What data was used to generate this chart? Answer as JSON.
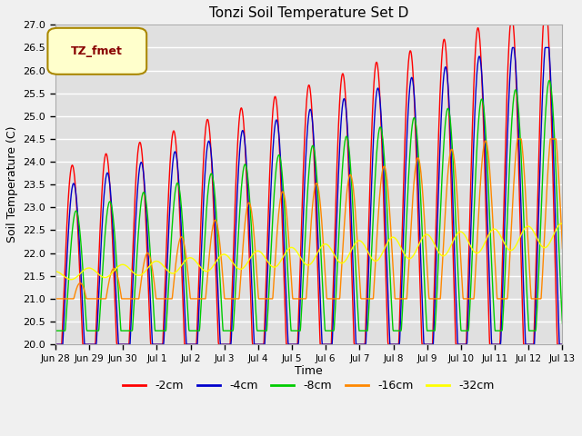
{
  "title": "Tonzi Soil Temperature Set D",
  "xlabel": "Time",
  "ylabel": "Soil Temperature (C)",
  "ylim": [
    20.0,
    27.0
  ],
  "yticks": [
    20.0,
    20.5,
    21.0,
    21.5,
    22.0,
    22.5,
    23.0,
    23.5,
    24.0,
    24.5,
    25.0,
    25.5,
    26.0,
    26.5,
    27.0
  ],
  "xtick_labels": [
    "Jun 28",
    "Jun 29",
    "Jun 30",
    "Jul 1",
    "Jul 2",
    "Jul 3",
    "Jul 4",
    "Jul 5",
    "Jul 6",
    "Jul 7",
    "Jul 8",
    "Jul 9",
    "Jul 10",
    "Jul 11",
    "Jul 12",
    "Jul 13"
  ],
  "legend_label": "TZ_fmet",
  "legend_border_color": "#aa8800",
  "legend_bg_color": "#ffffcc",
  "legend_text_color": "#880000",
  "series_labels": [
    "-2cm",
    "-4cm",
    "-8cm",
    "-16cm",
    "-32cm"
  ],
  "series_colors": [
    "#ff0000",
    "#0000cc",
    "#00cc00",
    "#ff8800",
    "#ffff00"
  ],
  "plot_bg_color": "#e0e0e0",
  "fig_bg_color": "#f0f0f0",
  "grid_color": "#ffffff",
  "figsize": [
    6.4,
    4.8
  ],
  "dpi": 100
}
